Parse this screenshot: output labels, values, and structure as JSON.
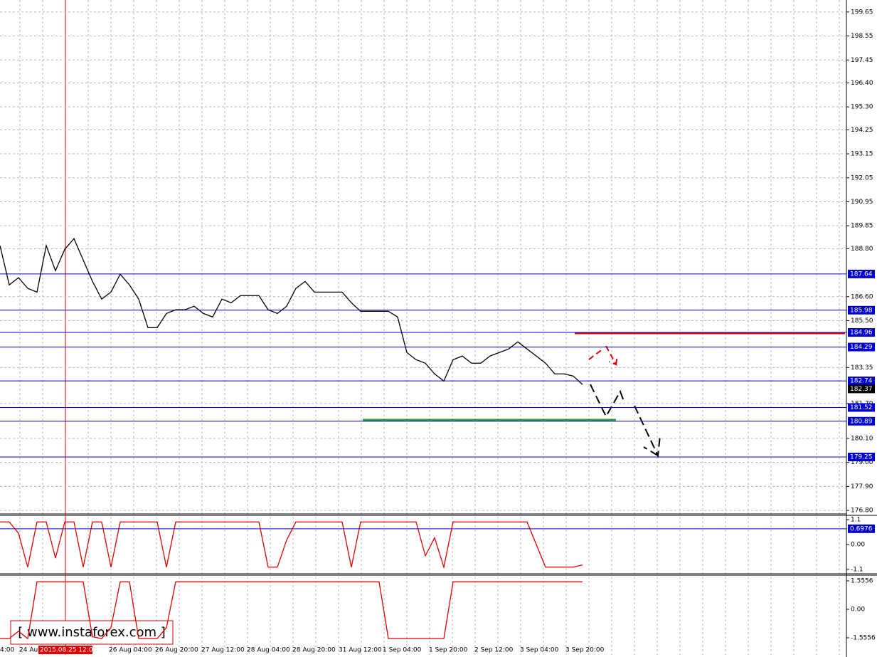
{
  "chart_data": [
    {
      "type": "line",
      "ylim": [
        176.64,
        200.2
      ],
      "yticks": [
        199.65,
        198.55,
        197.45,
        {
          "value": 196.4,
          "label": "196.40"
        },
        {
          "value": 195.3,
          "label": "195.30"
        },
        194.25,
        193.15,
        192.05,
        190.95,
        189.85,
        {
          "value": 188.8,
          "label": "188.80"
        },
        {
          "value": 186.6,
          "label": "186.60"
        },
        {
          "value": 185.5,
          "label": "185.50"
        },
        183.35,
        {
          "value": 181.7,
          "label": "181.70"
        },
        {
          "value": 180.1,
          "label": "180.10"
        },
        {
          "value": 179,
          "label": "179.00"
        },
        {
          "value": 177.9,
          "label": "177.90"
        },
        {
          "value": 176.8,
          "label": "176.80"
        }
      ],
      "grid": true,
      "levels": [
        187.64,
        185.98,
        184.96,
        184.29,
        182.74,
        181.52,
        180.89,
        179.25
      ],
      "level_color": "#0000cc",
      "last_price": 182.37,
      "time_labels": [
        "4:00",
        "24 Au",
        "2015.08.25 12:00",
        "26 Aug 04:00",
        "26 Aug 20:00",
        "27 Aug 12:00",
        "28 Aug 04:00",
        "28 Aug 20:00",
        "31 Aug 12:00",
        "1 Sep 04:00",
        "1 Sep 20:00",
        "2 Sep 12:00",
        "3 Sep 04:00",
        "3 Sep 20:00"
      ],
      "series": [
        {
          "color": "#000000",
          "values": [
            188.94,
            187.14,
            187.47,
            186.98,
            186.81,
            188.94,
            187.79,
            188.77,
            189.26,
            188.28,
            187.3,
            186.49,
            186.81,
            187.63,
            187.14,
            186.49,
            185.18,
            185.18,
            185.83,
            186.0,
            186.0,
            186.16,
            185.83,
            185.67,
            186.49,
            186.32,
            186.65,
            186.65,
            186.65,
            186.0,
            185.83,
            186.16,
            186.98,
            187.3,
            186.81,
            186.81,
            186.81,
            186.81,
            186.32,
            185.93,
            185.93,
            185.93,
            185.93,
            185.67,
            184.04,
            183.71,
            183.55,
            183.06,
            182.73,
            183.71,
            183.88,
            183.55,
            183.55,
            183.88,
            184.04,
            184.2,
            184.53,
            184.2,
            183.88,
            183.55,
            183.06,
            183.06,
            182.96,
            182.57
          ]
        }
      ]
    },
    {
      "type": "line",
      "ylim": [
        -1.29,
        1.29
      ],
      "yticks": [
        1.1,
        {
          "value": 0,
          "label": "0.00"
        },
        -1.1
      ],
      "levels": [
        0.6976
      ],
      "level_color": "#0000cc",
      "series": [
        {
          "color": "#e00000",
          "values": [
            1.0,
            1.0,
            0.5,
            -1.0,
            1.0,
            1.0,
            -0.6,
            1.0,
            1.0,
            -1.0,
            1.0,
            1.0,
            -1.0,
            1.0,
            1.0,
            1.0,
            1.0,
            1.0,
            -1.0,
            1.0,
            1.0,
            1.0,
            1.0,
            1.0,
            1.0,
            1.0,
            1.0,
            1.0,
            1.0,
            -1.0,
            -1.0,
            0.2,
            1.0,
            1.0,
            1.0,
            1.0,
            1.0,
            1.0,
            -1.0,
            1.0,
            1.0,
            1.0,
            1.0,
            1.0,
            1.0,
            1.0,
            -0.5,
            0.3,
            -1.0,
            1.0,
            1.0,
            1.0,
            1.0,
            1.0,
            1.0,
            1.0,
            1.0,
            1.0,
            0.0,
            -1.0,
            -1.0,
            -1.0,
            -1.0,
            -0.9
          ]
        }
      ]
    },
    {
      "type": "line",
      "ylim": [
        -2.49,
        1.867
      ],
      "yticks": [
        1.5556,
        {
          "value": 0,
          "label": "0.00"
        },
        -1.5556
      ],
      "series": [
        {
          "color": "#e00000",
          "values": [
            -1.6,
            -1.6,
            -1.2,
            -1.6,
            1.5,
            1.5,
            1.5,
            1.5,
            1.5,
            1.5,
            -1.5,
            -1.6,
            -1.0,
            1.5,
            1.5,
            -1.6,
            -1.6,
            -1.6,
            -1.0,
            1.5,
            1.5,
            1.5,
            1.5,
            1.5,
            1.5,
            1.5,
            1.5,
            1.5,
            1.5,
            1.5,
            1.5,
            1.5,
            1.5,
            1.5,
            1.5,
            1.5,
            1.5,
            1.5,
            1.5,
            1.5,
            1.5,
            1.5,
            -1.6,
            -1.6,
            -1.6,
            -1.6,
            -1.6,
            -1.6,
            -1.6,
            1.5,
            1.5,
            1.5,
            1.5,
            1.5,
            1.5,
            1.5,
            1.5,
            1.5,
            1.5,
            1.5,
            1.5,
            1.5,
            1.5,
            1.5
          ]
        }
      ]
    }
  ],
  "watermark": "[  www.instaforex.com  ]"
}
